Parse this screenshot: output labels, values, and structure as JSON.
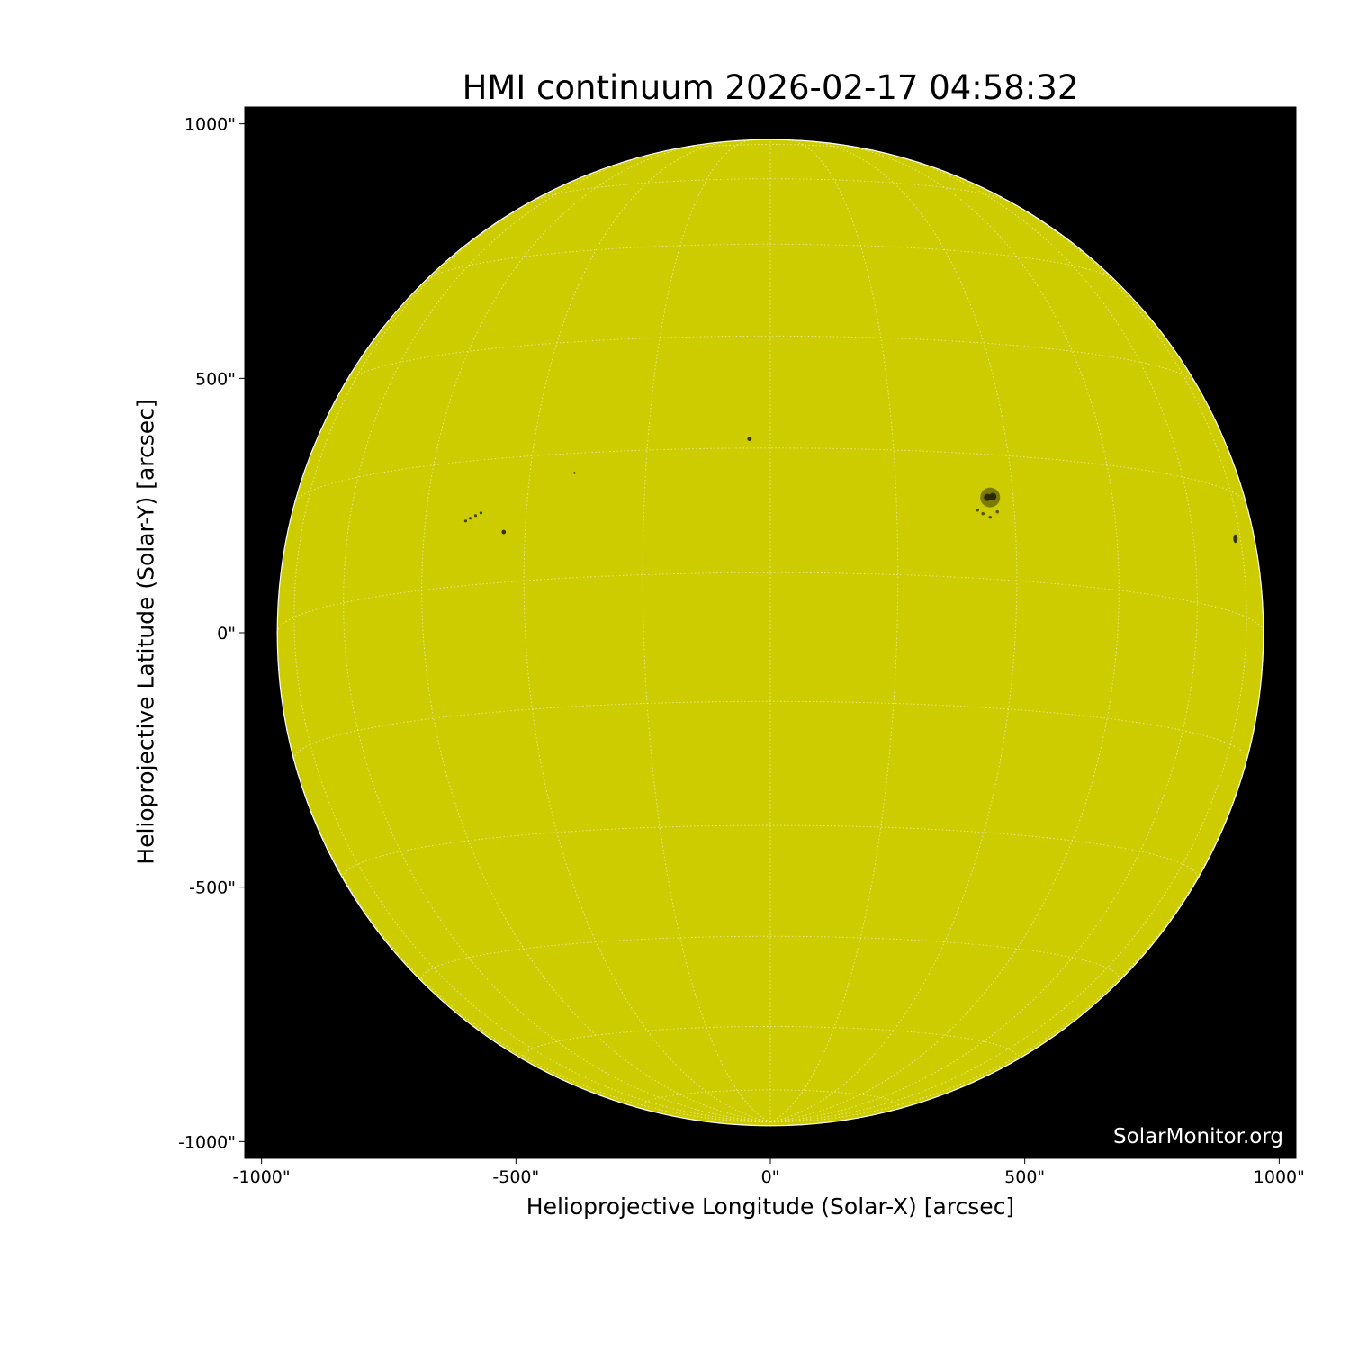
{
  "chart_data": {
    "type": "image",
    "title": "HMI continuum 2026-02-17 04:58:32",
    "xlabel": "Helioprojective Longitude (Solar-X) [arcsec]",
    "ylabel": "Helioprojective Latitude (Solar-Y) [arcsec]",
    "xlim": [
      -1033,
      1033
    ],
    "ylim": [
      -1033,
      1033
    ],
    "xticks": [
      -1000,
      -500,
      0,
      500,
      1000
    ],
    "yticks": [
      -1000,
      -500,
      0,
      500,
      1000
    ],
    "xtick_labels": [
      "-1000\"",
      "-500\"",
      "0\"",
      "500\"",
      "1000\""
    ],
    "ytick_labels": [
      "-1000\"",
      "-500\"",
      "0\"",
      "500\"",
      "1000\""
    ],
    "solar_radius_arcsec": 969,
    "grid": "heliographic, 15 degree spacing, white dotted",
    "colors": {
      "sun": "#cccc00",
      "background": "#000000",
      "grid": "#ffffff",
      "spots": "#2a2a00"
    },
    "sunspots": [
      {
        "x": 432,
        "y": 266,
        "size": "large"
      },
      {
        "x": -41,
        "y": 381,
        "size": "small"
      },
      {
        "x": -524,
        "y": 198,
        "size": "small"
      },
      {
        "x": -385,
        "y": 314,
        "size": "tiny"
      },
      {
        "x": -590,
        "y": 225,
        "size": "small-group"
      },
      {
        "x": 914,
        "y": 185,
        "size": "small"
      }
    ],
    "watermark": "SolarMonitor.org"
  }
}
